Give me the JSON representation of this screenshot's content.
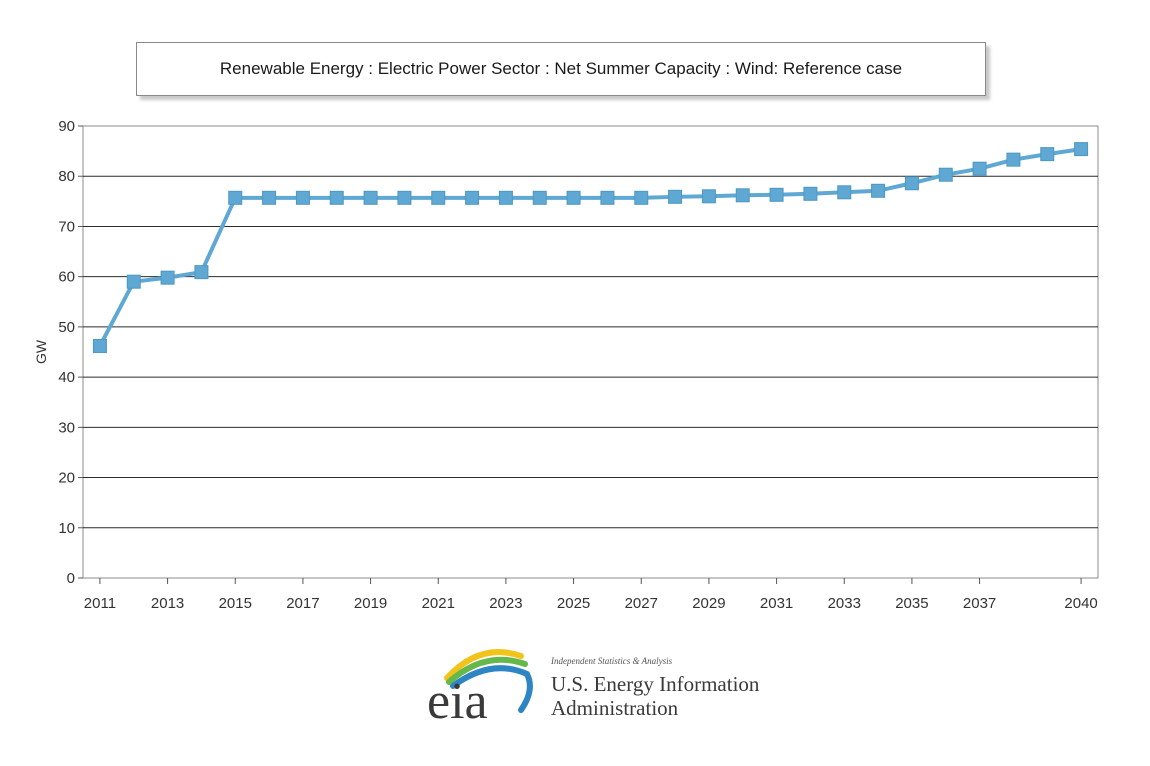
{
  "chart_data": {
    "type": "line",
    "title": "Renewable Energy : Electric Power Sector : Net Summer Capacity : Wind: Reference case",
    "xlabel": "",
    "ylabel": "GW",
    "ylim": [
      0,
      90
    ],
    "yticks": [
      0,
      10,
      20,
      30,
      40,
      50,
      60,
      70,
      80,
      90
    ],
    "xlim": [
      2011,
      2040
    ],
    "xticks": [
      2011,
      2013,
      2015,
      2017,
      2019,
      2021,
      2023,
      2025,
      2027,
      2029,
      2031,
      2033,
      2035,
      2037,
      2040
    ],
    "grid": true,
    "legend": "none",
    "series": [
      {
        "color": "#5fa8d3",
        "marker": "square",
        "x": [
          2011,
          2012,
          2013,
          2014,
          2015,
          2016,
          2017,
          2018,
          2019,
          2020,
          2021,
          2022,
          2023,
          2024,
          2025,
          2026,
          2027,
          2028,
          2029,
          2030,
          2031,
          2032,
          2033,
          2034,
          2035,
          2036,
          2037,
          2038,
          2039,
          2040
        ],
        "values": [
          46.2,
          59.0,
          59.8,
          60.9,
          75.7,
          75.7,
          75.7,
          75.7,
          75.7,
          75.7,
          75.7,
          75.7,
          75.7,
          75.7,
          75.7,
          75.7,
          75.7,
          75.9,
          76.0,
          76.2,
          76.3,
          76.5,
          76.8,
          77.1,
          78.6,
          80.3,
          81.5,
          83.3,
          84.4,
          85.4
        ]
      }
    ]
  },
  "logo": {
    "mark": "eia",
    "tagline": "Independent Statistics & Analysis",
    "name_line1": "U.S. Energy Information",
    "name_line2": "Administration",
    "colors": {
      "arc_yellow": "#f2c31b",
      "arc_green": "#67b84b",
      "arc_blue": "#2d86c3",
      "text": "#3a3a3a"
    }
  }
}
